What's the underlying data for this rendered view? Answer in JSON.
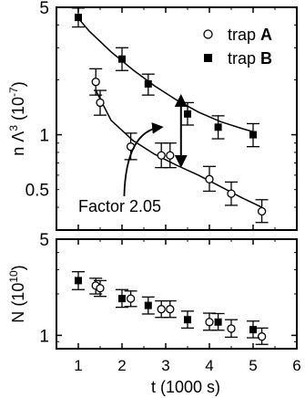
{
  "chart_data": [
    {
      "type": "scatter",
      "panel": "top",
      "xlim": [
        0.5,
        6
      ],
      "ylim": [
        0.3,
        5
      ],
      "y_scale": "log",
      "ylabel_parts": [
        "n Λ",
        "3",
        " (10",
        "-7",
        ")"
      ],
      "y_ticks": [
        {
          "value": 5,
          "label": "5"
        },
        {
          "value": 1,
          "label": "1"
        },
        {
          "value": 0.5,
          "label": "0.5"
        }
      ],
      "legend": {
        "placement": "top-right",
        "entries": [
          {
            "marker": "open-circle",
            "prefix": "trap ",
            "name": "A"
          },
          {
            "marker": "filled-square",
            "prefix": "trap ",
            "name": "B"
          }
        ]
      },
      "series": [
        {
          "name": "A",
          "marker": "open-circle",
          "points": [
            {
              "x": 1.4,
              "y": 1.95,
              "lo": 1.65,
              "hi": 2.3
            },
            {
              "x": 1.5,
              "y": 1.5,
              "lo": 1.28,
              "hi": 1.75
            },
            {
              "x": 2.2,
              "y": 0.86,
              "lo": 0.73,
              "hi": 1.02
            },
            {
              "x": 2.9,
              "y": 0.77,
              "lo": 0.66,
              "hi": 0.9
            },
            {
              "x": 3.1,
              "y": 0.77,
              "lo": 0.66,
              "hi": 0.9
            },
            {
              "x": 4.0,
              "y": 0.57,
              "lo": 0.49,
              "hi": 0.67
            },
            {
              "x": 4.5,
              "y": 0.475,
              "lo": 0.41,
              "hi": 0.55
            },
            {
              "x": 5.2,
              "y": 0.38,
              "lo": 0.33,
              "hi": 0.44
            }
          ],
          "fit": [
            [
              1.4,
              1.75
            ],
            [
              1.75,
              1.2
            ],
            [
              2.25,
              0.93
            ],
            [
              2.75,
              0.78
            ],
            [
              3.25,
              0.68
            ],
            [
              3.75,
              0.6
            ],
            [
              4.25,
              0.52
            ],
            [
              4.75,
              0.45
            ],
            [
              5.2,
              0.4
            ]
          ]
        },
        {
          "name": "B",
          "marker": "filled-square",
          "points": [
            {
              "x": 1.0,
              "y": 4.4,
              "lo": 3.9,
              "hi": 4.95
            },
            {
              "x": 2.0,
              "y": 2.6,
              "lo": 2.25,
              "hi": 3.0
            },
            {
              "x": 2.6,
              "y": 1.9,
              "lo": 1.65,
              "hi": 2.15
            },
            {
              "x": 3.5,
              "y": 1.3,
              "lo": 1.13,
              "hi": 1.5
            },
            {
              "x": 4.2,
              "y": 1.1,
              "lo": 0.95,
              "hi": 1.27
            },
            {
              "x": 5.0,
              "y": 1.0,
              "lo": 0.86,
              "hi": 1.15
            }
          ],
          "fit": [
            [
              0.95,
              4.5
            ],
            [
              1.25,
              3.7
            ],
            [
              1.75,
              2.85
            ],
            [
              2.25,
              2.27
            ],
            [
              2.75,
              1.85
            ],
            [
              3.25,
              1.55
            ],
            [
              3.75,
              1.33
            ],
            [
              4.25,
              1.18
            ],
            [
              4.75,
              1.08
            ],
            [
              5.05,
              1.03
            ]
          ]
        }
      ],
      "annotation": {
        "text": "Factor 2.05",
        "double_arrow_x": 3.35,
        "double_arrow_y": [
          0.68,
          1.62
        ],
        "curved_arrow_from": [
          2.05,
          0.46
        ],
        "curved_arrow_to": [
          2.9,
          1.1
        ]
      }
    },
    {
      "type": "scatter",
      "panel": "bottom",
      "xlim": [
        0.5,
        6
      ],
      "ylim": [
        0.8,
        5
      ],
      "y_scale": "log",
      "xlabel": "t (1000 s)",
      "ylabel_parts": [
        "N",
        "",
        " (10",
        "10",
        ")"
      ],
      "x_ticks": [
        1,
        2,
        3,
        4,
        5,
        6
      ],
      "y_ticks": [
        {
          "value": 5,
          "label": "5"
        },
        {
          "value": 1,
          "label": "1"
        }
      ],
      "series": [
        {
          "name": "A",
          "marker": "open-circle",
          "points": [
            {
              "x": 1.4,
              "y": 2.3,
              "lo": 2.0,
              "hi": 2.6
            },
            {
              "x": 1.5,
              "y": 2.2,
              "lo": 1.92,
              "hi": 2.5
            },
            {
              "x": 2.2,
              "y": 1.85,
              "lo": 1.62,
              "hi": 2.1
            },
            {
              "x": 2.9,
              "y": 1.55,
              "lo": 1.35,
              "hi": 1.78
            },
            {
              "x": 3.1,
              "y": 1.55,
              "lo": 1.35,
              "hi": 1.78
            },
            {
              "x": 4.0,
              "y": 1.25,
              "lo": 1.09,
              "hi": 1.45
            },
            {
              "x": 4.5,
              "y": 1.12,
              "lo": 0.97,
              "hi": 1.3
            },
            {
              "x": 5.2,
              "y": 0.98,
              "lo": 0.86,
              "hi": 1.13
            }
          ]
        },
        {
          "name": "B",
          "marker": "filled-square",
          "points": [
            {
              "x": 1.0,
              "y": 2.5,
              "lo": 2.15,
              "hi": 2.9
            },
            {
              "x": 2.0,
              "y": 1.85,
              "lo": 1.6,
              "hi": 2.15
            },
            {
              "x": 2.6,
              "y": 1.65,
              "lo": 1.43,
              "hi": 1.9
            },
            {
              "x": 3.5,
              "y": 1.3,
              "lo": 1.13,
              "hi": 1.5
            },
            {
              "x": 4.2,
              "y": 1.25,
              "lo": 1.09,
              "hi": 1.44
            },
            {
              "x": 5.0,
              "y": 1.1,
              "lo": 0.96,
              "hi": 1.27
            }
          ]
        }
      ]
    }
  ]
}
